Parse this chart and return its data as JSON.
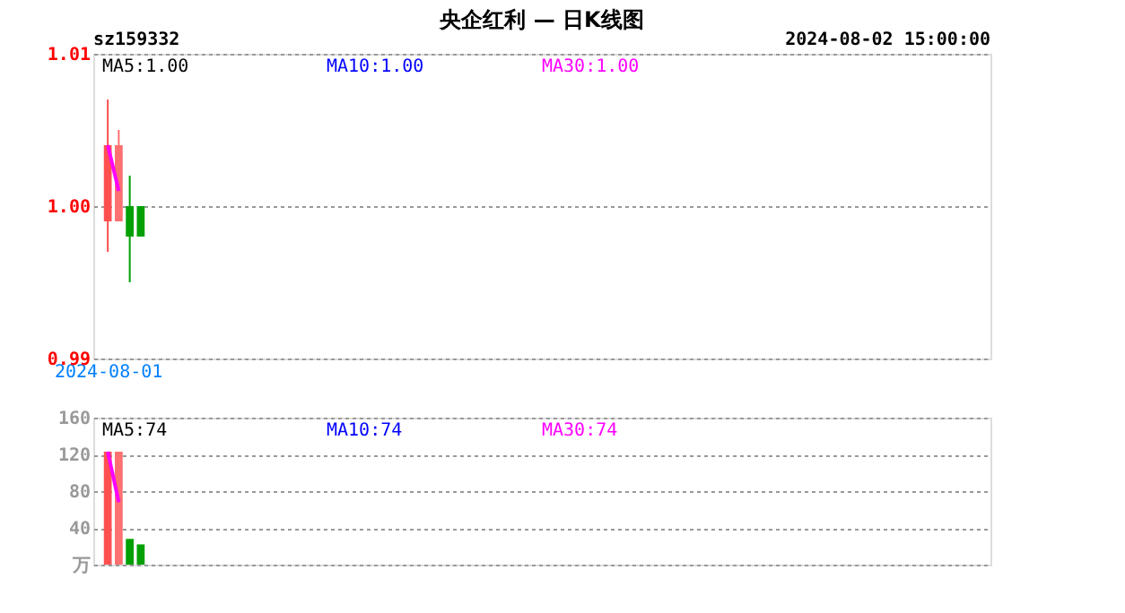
{
  "chart_data": [
    {
      "type": "candlestick",
      "title": "央企红利 — 日K线图",
      "annotations": [
        "sz159332",
        "2024-08-02 15:00:00",
        {
          "text": "MA5:1.00"
        },
        {
          "text": "MA10:1.00"
        },
        {
          "text": "MA30:1.00"
        }
      ],
      "categories": [
        "2024-08-01",
        null,
        null,
        null,
        null,
        null,
        null,
        null,
        null,
        null,
        null,
        null,
        null,
        null,
        null,
        null,
        null,
        null,
        null,
        null,
        null,
        null,
        null,
        null,
        null,
        null,
        null,
        null,
        null,
        null,
        null,
        null,
        null,
        null,
        null,
        null,
        null,
        null,
        null,
        null,
        null,
        null,
        null,
        null,
        null,
        null,
        null,
        null,
        null,
        null,
        null,
        null,
        null,
        null,
        null,
        null,
        null,
        null,
        null,
        null,
        null,
        null,
        null,
        null,
        null,
        null,
        null,
        null,
        null,
        null,
        null,
        null,
        null,
        null,
        null,
        null,
        null,
        null,
        null,
        null
      ],
      "ohlc": [
        [
          0.999,
          1.007,
          0.997,
          1.004
        ],
        [
          0.999,
          1.005,
          0.999,
          1.004
        ],
        [
          1.0,
          1.002,
          0.995,
          0.998
        ],
        [
          1.0,
          1.0,
          0.998,
          0.998
        ],
        null,
        null,
        null,
        null,
        null,
        null,
        null,
        null,
        null,
        null,
        null,
        null,
        null,
        null,
        null,
        null,
        null,
        null,
        null,
        null,
        null,
        null,
        null,
        null,
        null,
        null,
        null,
        null,
        null,
        null,
        null,
        null,
        null,
        null,
        null,
        null,
        null,
        null,
        null,
        null,
        null,
        null,
        null,
        null,
        null,
        null,
        null,
        null,
        null,
        null,
        null,
        null,
        null,
        null,
        null,
        null,
        null,
        null,
        null,
        null,
        null,
        null,
        null,
        null,
        null,
        null,
        null,
        null,
        null,
        null,
        null,
        null,
        null,
        null,
        null,
        null
      ],
      "colors": [
        "#ff5050",
        "#ff7070",
        "#00a000",
        "#00a000",
        null,
        null,
        null,
        null,
        null,
        null,
        null,
        null,
        null,
        null,
        null,
        null,
        null,
        null,
        null,
        null,
        null,
        null,
        null,
        null,
        null,
        null,
        null,
        null,
        null,
        null,
        null,
        null,
        null,
        null,
        null,
        null,
        null,
        null,
        null,
        null,
        null,
        null,
        null,
        null,
        null,
        null,
        null,
        null,
        null,
        null,
        null,
        null,
        null,
        null,
        null,
        null,
        null,
        null,
        null,
        null,
        null,
        null,
        null,
        null,
        null,
        null,
        null,
        null,
        null,
        null,
        null,
        null,
        null,
        null,
        null,
        null,
        null,
        null,
        null,
        null
      ],
      "series": [
        {
          "type": "line",
          "color": "#ff00ff",
          "values": [
            1.004,
            1.001,
            null,
            null,
            null,
            null,
            null,
            null,
            null,
            null,
            null,
            null,
            null,
            null,
            null,
            null,
            null,
            null,
            null,
            null,
            null,
            null,
            null,
            null,
            null,
            null,
            null,
            null,
            null,
            null,
            null,
            null,
            null,
            null,
            null,
            null,
            null,
            null,
            null,
            null,
            null,
            null,
            null,
            null,
            null,
            null,
            null,
            null,
            null,
            null,
            null,
            null,
            null,
            null,
            null,
            null,
            null,
            null,
            null,
            null,
            null,
            null,
            null,
            null,
            null,
            null,
            null,
            null,
            null,
            null,
            null,
            null,
            null,
            null,
            null,
            null,
            null,
            null,
            null,
            null
          ]
        }
      ],
      "ylim": [
        0.99,
        1.01
      ],
      "yticks": [
        {
          "value": 0.99,
          "label": "0.99"
        },
        {
          "value": 1.0,
          "label": "1.00"
        },
        {
          "value": 1.01,
          "label": "1.01"
        }
      ],
      "grid": "y"
    },
    {
      "type": "bar",
      "annotations": [
        {
          "text": "MA5:74"
        },
        {
          "text": "MA10:74"
        },
        {
          "text": "MA30:74"
        }
      ],
      "categories": [
        null,
        null,
        null,
        null,
        null,
        null,
        null,
        null,
        null,
        null,
        null,
        null,
        null,
        null,
        null,
        null,
        null,
        null,
        null,
        null,
        null,
        null,
        null,
        null,
        null,
        null,
        null,
        null,
        null,
        null,
        null,
        null,
        null,
        null,
        null,
        null,
        null,
        null,
        null,
        null,
        null,
        null,
        null,
        null,
        null,
        null,
        null,
        null,
        null,
        null,
        null,
        null,
        null,
        null,
        null,
        null,
        null,
        null,
        null,
        null,
        null,
        null,
        null,
        null,
        null,
        null,
        null,
        null,
        null,
        null,
        null,
        null,
        null,
        null,
        null,
        null,
        null,
        null,
        null,
        null
      ],
      "values": [
        123,
        123,
        28,
        22,
        null,
        null,
        null,
        null,
        null,
        null,
        null,
        null,
        null,
        null,
        null,
        null,
        null,
        null,
        null,
        null,
        null,
        null,
        null,
        null,
        null,
        null,
        null,
        null,
        null,
        null,
        null,
        null,
        null,
        null,
        null,
        null,
        null,
        null,
        null,
        null,
        null,
        null,
        null,
        null,
        null,
        null,
        null,
        null,
        null,
        null,
        null,
        null,
        null,
        null,
        null,
        null,
        null,
        null,
        null,
        null,
        null,
        null,
        null,
        null,
        null,
        null,
        null,
        null,
        null,
        null,
        null,
        null,
        null,
        null,
        null,
        null,
        null,
        null,
        null,
        null
      ],
      "colors": [
        "#ff5050",
        "#ff7070",
        "#00a000",
        "#00a000",
        null,
        null,
        null,
        null,
        null,
        null,
        null,
        null,
        null,
        null,
        null,
        null,
        null,
        null,
        null,
        null,
        null,
        null,
        null,
        null,
        null,
        null,
        null,
        null,
        null,
        null,
        null,
        null,
        null,
        null,
        null,
        null,
        null,
        null,
        null,
        null,
        null,
        null,
        null,
        null,
        null,
        null,
        null,
        null,
        null,
        null,
        null,
        null,
        null,
        null,
        null,
        null,
        null,
        null,
        null,
        null,
        null,
        null,
        null,
        null,
        null,
        null,
        null,
        null,
        null,
        null,
        null,
        null,
        null,
        null,
        null,
        null,
        null,
        null,
        null,
        null
      ],
      "series": [
        {
          "type": "line",
          "color": "#ff00ff",
          "values": [
            123,
            68,
            null,
            null,
            null,
            null,
            null,
            null,
            null,
            null,
            null,
            null,
            null,
            null,
            null,
            null,
            null,
            null,
            null,
            null,
            null,
            null,
            null,
            null,
            null,
            null,
            null,
            null,
            null,
            null,
            null,
            null,
            null,
            null,
            null,
            null,
            null,
            null,
            null,
            null,
            null,
            null,
            null,
            null,
            null,
            null,
            null,
            null,
            null,
            null,
            null,
            null,
            null,
            null,
            null,
            null,
            null,
            null,
            null,
            null,
            null,
            null,
            null,
            null,
            null,
            null,
            null,
            null,
            null,
            null,
            null,
            null,
            null,
            null,
            null,
            null,
            null,
            null,
            null,
            null
          ]
        }
      ],
      "ylim": [
        0,
        160
      ],
      "yticks": [
        {
          "value": 0,
          "label": "万"
        },
        40,
        80,
        120,
        160
      ],
      "grid": "y",
      "tick_labels": "y"
    }
  ]
}
